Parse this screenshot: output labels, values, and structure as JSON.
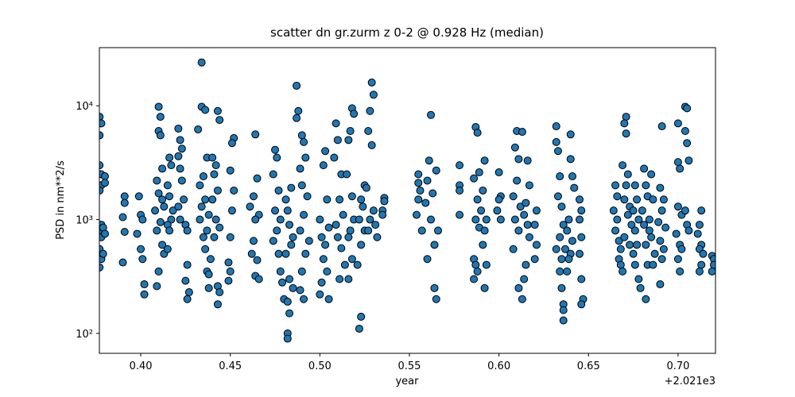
{
  "chart_data": {
    "type": "scatter",
    "title": "scatter dn gr.zurm z 0-2 @ 0.928 Hz (median)",
    "x_label": "year",
    "y_label": "PSD in nm**2/s",
    "x_offset_label": "+2.021e3",
    "log_y": true,
    "xlim": [
      0.3769,
      0.7209
    ],
    "ylim": [
      66.8,
      32400
    ],
    "xticks": [
      {
        "value": 0.4,
        "label": "0.40"
      },
      {
        "value": 0.45,
        "label": "0.45"
      },
      {
        "value": 0.5,
        "label": "0.50"
      },
      {
        "value": 0.55,
        "label": "0.55"
      },
      {
        "value": 0.6,
        "label": "0.60"
      },
      {
        "value": 0.65,
        "label": "0.65"
      },
      {
        "value": 0.7,
        "label": "0.70"
      }
    ],
    "yticks": [
      {
        "value": 100,
        "label": "10²"
      },
      {
        "value": 1000,
        "label": "10³"
      },
      {
        "value": 10000,
        "label": "10⁴"
      }
    ],
    "series": [
      {
        "color": "#1f77b4",
        "x": [
          0.377,
          0.378,
          0.377,
          0.377,
          0.378,
          0.378,
          0.377,
          0.378,
          0.377,
          0.378,
          0.377,
          0.378,
          0.377,
          0.38,
          0.38,
          0.379,
          0.38,
          0.379,
          0.391,
          0.391,
          0.39,
          0.391,
          0.39,
          0.399,
          0.4,
          0.401,
          0.398,
          0.4,
          0.401,
          0.402,
          0.402,
          0.41,
          0.411,
          0.41,
          0.411,
          0.412,
          0.409,
          0.41,
          0.412,
          0.413,
          0.408,
          0.411,
          0.409,
          0.412,
          0.413,
          0.41,
          0.409,
          0.416,
          0.417,
          0.415,
          0.416,
          0.418,
          0.417,
          0.415,
          0.416,
          0.415,
          0.421,
          0.422,
          0.423,
          0.421,
          0.422,
          0.423,
          0.424,
          0.421,
          0.422,
          0.425,
          0.426,
          0.426,
          0.425,
          0.427,
          0.426,
          0.434,
          0.434,
          0.436,
          0.432,
          0.437,
          0.435,
          0.433,
          0.436,
          0.434,
          0.438,
          0.433,
          0.437,
          0.435,
          0.436,
          0.437,
          0.438,
          0.438,
          0.443,
          0.444,
          0.44,
          0.442,
          0.441,
          0.443,
          0.44,
          0.442,
          0.444,
          0.441,
          0.439,
          0.443,
          0.444,
          0.443,
          0.452,
          0.451,
          0.45,
          0.452,
          0.451,
          0.45,
          0.449,
          0.45,
          0.449,
          0.464,
          0.465,
          0.463,
          0.461,
          0.466,
          0.464,
          0.463,
          0.462,
          0.465,
          0.464,
          0.466,
          0.475,
          0.476,
          0.474,
          0.477,
          0.475,
          0.478,
          0.476,
          0.474,
          0.477,
          0.478,
          0.479,
          0.48,
          0.484,
          0.481,
          0.482,
          0.483,
          0.485,
          0.484,
          0.481,
          0.483,
          0.485,
          0.482,
          0.483,
          0.482,
          0.482,
          0.487,
          0.488,
          0.487,
          0.49,
          0.491,
          0.492,
          0.489,
          0.49,
          0.493,
          0.491,
          0.489,
          0.494,
          0.492,
          0.49,
          0.489,
          0.491,
          0.503,
          0.502,
          0.504,
          0.5,
          0.505,
          0.501,
          0.503,
          0.502,
          0.504,
          0.501,
          0.5,
          0.505,
          0.509,
          0.51,
          0.508,
          0.512,
          0.511,
          0.513,
          0.509,
          0.51,
          0.512,
          0.514,
          0.511,
          0.518,
          0.519,
          0.517,
          0.516,
          0.515,
          0.518,
          0.519,
          0.517,
          0.516,
          0.518,
          0.516,
          0.525,
          0.523,
          0.524,
          0.522,
          0.525,
          0.523,
          0.521,
          0.523,
          0.522,
          0.529,
          0.53,
          0.528,
          0.527,
          0.529,
          0.526,
          0.53,
          0.528,
          0.531,
          0.527,
          0.532,
          0.536,
          0.536,
          0.535,
          0.535,
          0.555,
          0.555,
          0.556,
          0.555,
          0.554,
          0.557,
          0.562,
          0.561,
          0.565,
          0.56,
          0.563,
          0.559,
          0.562,
          0.566,
          0.564,
          0.56,
          0.564,
          0.565,
          0.578,
          0.578,
          0.578,
          0.578,
          0.587,
          0.588,
          0.589,
          0.586,
          0.588,
          0.59,
          0.587,
          0.589,
          0.586,
          0.587,
          0.588,
          0.586,
          0.592,
          0.591,
          0.593,
          0.592,
          0.591,
          0.593,
          0.592,
          0.6,
          0.601,
          0.6,
          0.599,
          0.601,
          0.61,
          0.609,
          0.611,
          0.61,
          0.608,
          0.612,
          0.609,
          0.611,
          0.608,
          0.611,
          0.613,
          0.613,
          0.616,
          0.617,
          0.615,
          0.614,
          0.616,
          0.617,
          0.615,
          0.614,
          0.621,
          0.62,
          0.621,
          0.62,
          0.632,
          0.632,
          0.633,
          0.634,
          0.633,
          0.635,
          0.636,
          0.634,
          0.632,
          0.635,
          0.634,
          0.635,
          0.636,
          0.636,
          0.636,
          0.64,
          0.64,
          0.641,
          0.642,
          0.639,
          0.638,
          0.641,
          0.637,
          0.64,
          0.639,
          0.638,
          0.645,
          0.646,
          0.645,
          0.646,
          0.645,
          0.646,
          0.647,
          0.646,
          0.665,
          0.666,
          0.664,
          0.666,
          0.665,
          0.667,
          0.668,
          0.667,
          0.668,
          0.669,
          0.671,
          0.67,
          0.671,
          0.669,
          0.672,
          0.671,
          0.67,
          0.673,
          0.672,
          0.674,
          0.67,
          0.673,
          0.675,
          0.676,
          0.677,
          0.675,
          0.678,
          0.676,
          0.677,
          0.676,
          0.678,
          0.681,
          0.682,
          0.683,
          0.68,
          0.681,
          0.684,
          0.682,
          0.683,
          0.679,
          0.682,
          0.685,
          0.686,
          0.684,
          0.685,
          0.687,
          0.686,
          0.691,
          0.69,
          0.692,
          0.691,
          0.689,
          0.693,
          0.69,
          0.692,
          0.691,
          0.69,
          0.7,
          0.7,
          0.701,
          0.7,
          0.702,
          0.699,
          0.701,
          0.702,
          0.7,
          0.701,
          0.704,
          0.705,
          0.704,
          0.705,
          0.706,
          0.704,
          0.705,
          0.706,
          0.713,
          0.712,
          0.711,
          0.713,
          0.712,
          0.714,
          0.713,
          0.712,
          0.719,
          0.72,
          0.72,
          0.719
        ],
        "values": [
          8000,
          7000,
          5500,
          3000,
          2500,
          2000,
          1800,
          900,
          800,
          700,
          550,
          450,
          380,
          2400,
          2100,
          850,
          750,
          500,
          1600,
          1400,
          1050,
          780,
          420,
          1600,
          1100,
          1000,
          750,
          550,
          450,
          270,
          220,
          9800,
          8000,
          6000,
          5500,
          2800,
          2200,
          1700,
          1500,
          1300,
          1200,
          950,
          800,
          600,
          500,
          350,
          260,
          3500,
          3000,
          2000,
          1600,
          1200,
          1000,
          900,
          800,
          550,
          6300,
          5000,
          4200,
          3600,
          2800,
          2200,
          1500,
          1300,
          1000,
          900,
          800,
          400,
          290,
          230,
          200,
          24000,
          9800,
          9200,
          6200,
          3500,
          2400,
          2000,
          1500,
          1300,
          1100,
          1000,
          800,
          700,
          550,
          350,
          330,
          250,
          9000,
          7500,
          3500,
          3000,
          2500,
          1800,
          1500,
          1000,
          850,
          700,
          450,
          260,
          230,
          180,
          5200,
          4700,
          2700,
          1800,
          1200,
          700,
          420,
          350,
          290,
          5600,
          2300,
          1600,
          1300,
          1100,
          1000,
          650,
          500,
          440,
          320,
          300,
          4100,
          3500,
          2500,
          1800,
          1200,
          1000,
          800,
          650,
          500,
          350,
          280,
          200,
          1900,
          1500,
          1200,
          900,
          700,
          600,
          500,
          300,
          250,
          190,
          150,
          100,
          90,
          15000,
          9000,
          7800,
          5500,
          4800,
          3500,
          2800,
          2000,
          1600,
          1100,
          800,
          650,
          500,
          350,
          240,
          200,
          4000,
          3000,
          1500,
          1000,
          850,
          700,
          600,
          450,
          350,
          280,
          220,
          200,
          7000,
          5000,
          3500,
          2500,
          1500,
          1100,
          900,
          700,
          560,
          400,
          300,
          9500,
          8500,
          6000,
          5000,
          2500,
          1600,
          1000,
          800,
          700,
          450,
          300,
          2000,
          1500,
          1300,
          1000,
          800,
          600,
          400,
          140,
          110,
          16000,
          12500,
          9000,
          6000,
          4500,
          1900,
          1200,
          1000,
          900,
          800,
          700,
          1550,
          1450,
          1200,
          1100,
          2500,
          2100,
          1800,
          1500,
          1100,
          800,
          8300,
          3300,
          2700,
          2200,
          1700,
          1400,
          1000,
          800,
          600,
          450,
          250,
          200,
          3000,
          2000,
          1800,
          1100,
          6500,
          5800,
          2600,
          2300,
          1500,
          1200,
          1000,
          850,
          450,
          400,
          350,
          300,
          3300,
          1800,
          1000,
          800,
          600,
          400,
          250,
          2600,
          1600,
          1500,
          1200,
          1000,
          6000,
          4300,
          3400,
          2200,
          1600,
          1300,
          1000,
          800,
          550,
          250,
          200,
          5900,
          3300,
          2000,
          1400,
          1100,
          900,
          700,
          400,
          300,
          1200,
          900,
          600,
          450,
          6600,
          4800,
          4000,
          2400,
          1600,
          1300,
          900,
          700,
          550,
          450,
          350,
          250,
          180,
          160,
          130,
          5600,
          3400,
          2400,
          1900,
          1000,
          800,
          650,
          550,
          500,
          450,
          350,
          1500,
          1200,
          1000,
          700,
          500,
          300,
          200,
          180,
          2000,
          1600,
          1200,
          1000,
          800,
          650,
          550,
          450,
          400,
          350,
          8000,
          7000,
          5700,
          3000,
          2500,
          2000,
          1500,
          1300,
          1100,
          900,
          700,
          600,
          500,
          2000,
          1500,
          1200,
          1000,
          800,
          600,
          400,
          300,
          2800,
          2000,
          1600,
          1200,
          900,
          800,
          600,
          400,
          250,
          200,
          2500,
          1500,
          1000,
          700,
          500,
          400,
          6600,
          1900,
          1500,
          1200,
          950,
          850,
          650,
          550,
          450,
          270,
          7000,
          3200,
          2800,
          1300,
          1100,
          750,
          600,
          550,
          450,
          350,
          9800,
          9500,
          6000,
          4700,
          3300,
          1200,
          900,
          800,
          1200,
          900,
          750,
          600,
          550,
          500,
          400,
          350,
          480,
          450,
          400,
          350
        ]
      }
    ]
  }
}
